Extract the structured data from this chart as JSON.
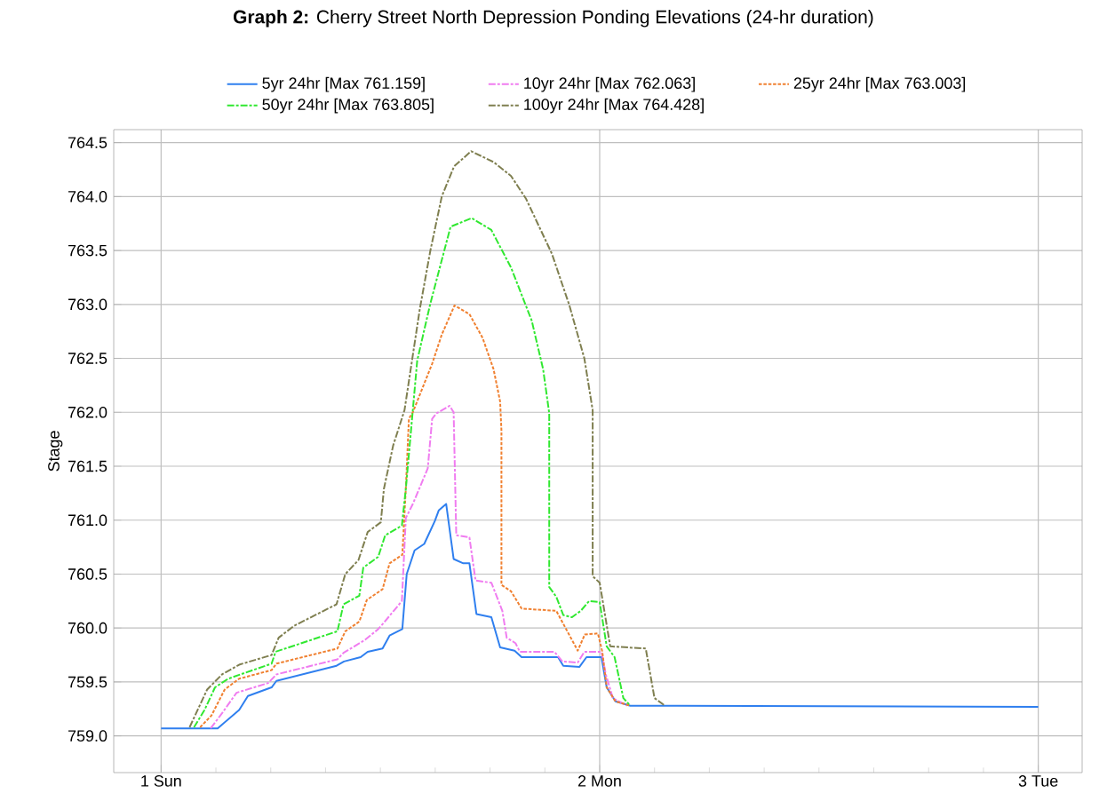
{
  "chart_data": {
    "type": "line",
    "title": "**Graph 2:** Cherry Street North Depression Ponding Elevations (24-hr duration)",
    "ylabel": "Stage",
    "xlim": [
      0.892,
      3.1
    ],
    "ylim": [
      758.66,
      764.62
    ],
    "xticks": [
      {
        "value": 1,
        "label": "1 Sun"
      },
      {
        "value": 1.125,
        "label": null
      },
      {
        "value": 1.25,
        "label": null
      },
      {
        "value": 1.375,
        "label": null
      },
      {
        "value": 1.5,
        "label": null
      },
      {
        "value": 1.625,
        "label": null
      },
      {
        "value": 1.75,
        "label": null
      },
      {
        "value": 1.875,
        "label": null
      },
      {
        "value": 2,
        "label": "2 Mon"
      },
      {
        "value": 2.125,
        "label": null
      },
      {
        "value": 2.25,
        "label": null
      },
      {
        "value": 2.375,
        "label": null
      },
      {
        "value": 2.5,
        "label": null
      },
      {
        "value": 2.625,
        "label": null
      },
      {
        "value": 2.75,
        "label": null
      },
      {
        "value": 2.875,
        "label": null
      },
      {
        "value": 3,
        "label": "3 Tue"
      }
    ],
    "yticks": [
      {
        "value": 759,
        "label": "759.0"
      },
      {
        "value": 759.5,
        "label": "759.5"
      },
      {
        "value": 760,
        "label": "760.0"
      },
      {
        "value": 760.5,
        "label": "760.5"
      },
      {
        "value": 761,
        "label": "761.0"
      },
      {
        "value": 761.5,
        "label": "761.5"
      },
      {
        "value": 762,
        "label": "762.0"
      },
      {
        "value": 762.5,
        "label": "762.5"
      },
      {
        "value": 763,
        "label": "763.0"
      },
      {
        "value": 763.5,
        "label": "763.5"
      },
      {
        "value": 764,
        "label": "764.0"
      },
      {
        "value": 764.5,
        "label": "764.5"
      }
    ],
    "grid": true,
    "legend": "top",
    "marker": "none",
    "series": [
      {
        "name": "5yr 24hr [Max 761.159]",
        "color": "#2f7fef",
        "line_style": "solid",
        "x": [
          1,
          1.129,
          1.178,
          1.198,
          1.252,
          1.263,
          1.4,
          1.417,
          1.455,
          1.471,
          1.505,
          1.521,
          1.55,
          1.56,
          1.578,
          1.6,
          1.624,
          1.633,
          1.65,
          1.667,
          1.689,
          1.703,
          1.719,
          1.753,
          1.773,
          1.806,
          1.822,
          1.905,
          1.917,
          1.954,
          1.97,
          2.004,
          2.016,
          2.036,
          2.07,
          3
        ],
        "values": [
          759.07,
          759.07,
          759.24,
          759.37,
          759.45,
          759.51,
          759.65,
          759.69,
          759.73,
          759.78,
          759.81,
          759.93,
          759.99,
          760.5,
          760.72,
          760.78,
          760.99,
          761.09,
          761.15,
          760.64,
          760.6,
          760.6,
          760.13,
          760.1,
          759.82,
          759.79,
          759.73,
          759.73,
          759.65,
          759.64,
          759.73,
          759.73,
          759.45,
          759.32,
          759.28,
          759.27
        ]
      },
      {
        "name": "10yr 24hr [Max 762.063]",
        "color": "#f07cf0",
        "line_style": "dashed",
        "x": [
          1.113,
          1.139,
          1.172,
          1.244,
          1.263,
          1.402,
          1.416,
          1.465,
          1.495,
          1.508,
          1.549,
          1.558,
          1.574,
          1.608,
          1.618,
          1.628,
          1.658,
          1.667,
          1.673,
          1.703,
          1.717,
          1.753,
          1.778,
          1.788,
          1.808,
          1.818,
          1.897,
          1.915,
          1.95,
          1.965,
          2.004,
          2.014,
          2.03,
          2.063
        ],
        "values": [
          759.07,
          759.21,
          759.4,
          759.49,
          759.57,
          759.71,
          759.77,
          759.89,
          759.99,
          760.05,
          760.25,
          761.02,
          761.15,
          761.48,
          761.94,
          761.99,
          762.06,
          762.0,
          760.86,
          760.84,
          760.44,
          760.42,
          760.16,
          759.91,
          759.86,
          759.78,
          759.78,
          759.69,
          759.68,
          759.78,
          759.78,
          759.57,
          759.35,
          759.28
        ]
      },
      {
        "name": "25yr 24hr [Max 763.003]",
        "color": "#f08030",
        "line_style": "dotted",
        "x": [
          1.089,
          1.115,
          1.145,
          1.178,
          1.252,
          1.263,
          1.402,
          1.42,
          1.452,
          1.469,
          1.505,
          1.521,
          1.55,
          1.558,
          1.565,
          1.574,
          1.618,
          1.64,
          1.669,
          1.703,
          1.733,
          1.758,
          1.773,
          1.776,
          1.776,
          1.798,
          1.822,
          1.901,
          1.95,
          1.966,
          1.996,
          2.006,
          2.016,
          2.036,
          2.07
        ],
        "values": [
          759.08,
          759.19,
          759.43,
          759.53,
          759.61,
          759.67,
          759.81,
          759.97,
          760.06,
          760.26,
          760.36,
          760.6,
          760.68,
          761.29,
          761.94,
          762.0,
          762.45,
          762.72,
          762.99,
          762.91,
          762.69,
          762.4,
          762.1,
          761.83,
          760.4,
          760.34,
          760.18,
          760.16,
          759.79,
          759.94,
          759.95,
          759.78,
          759.45,
          759.32,
          759.28
        ]
      },
      {
        "name": "50yr 24hr [Max 763.805]",
        "color": "#30e830",
        "line_style": "dashed",
        "x": [
          1.075,
          1.099,
          1.123,
          1.153,
          1.252,
          1.261,
          1.402,
          1.416,
          1.452,
          1.461,
          1.495,
          1.511,
          1.549,
          1.558,
          1.584,
          1.614,
          1.66,
          1.708,
          1.753,
          1.798,
          1.845,
          1.871,
          1.885,
          1.885,
          1.901,
          1.917,
          1.937,
          1.957,
          1.976,
          2,
          2.016,
          2.034,
          2.054,
          2.07
        ],
        "values": [
          759.08,
          759.24,
          759.45,
          759.53,
          759.67,
          759.78,
          759.97,
          760.22,
          760.3,
          760.56,
          760.66,
          760.86,
          760.95,
          761.29,
          762.48,
          763.01,
          763.72,
          763.8,
          763.69,
          763.34,
          762.85,
          762.4,
          761.99,
          760.38,
          760.29,
          760.12,
          760.1,
          760.16,
          760.25,
          760.24,
          759.83,
          759.73,
          759.35,
          759.28
        ]
      },
      {
        "name": "100yr 24hr [Max 764.428]",
        "color": "#7f7f50",
        "line_style": "dashed",
        "x": [
          1.065,
          1.105,
          1.139,
          1.178,
          1.252,
          1.268,
          1.303,
          1.4,
          1.42,
          1.45,
          1.471,
          1.501,
          1.508,
          1.529,
          1.555,
          1.59,
          1.614,
          1.64,
          1.668,
          1.707,
          1.758,
          1.798,
          1.832,
          1.891,
          1.931,
          1.965,
          1.984,
          1.984,
          2,
          2.024,
          2.105,
          2.125,
          2.149
        ],
        "values": [
          759.08,
          759.43,
          759.57,
          759.66,
          759.75,
          759.91,
          760.02,
          760.22,
          760.5,
          760.63,
          760.89,
          760.98,
          761.29,
          761.69,
          762.02,
          762.96,
          763.5,
          764.0,
          764.28,
          764.42,
          764.32,
          764.19,
          763.98,
          763.47,
          762.99,
          762.5,
          762.02,
          760.48,
          760.42,
          759.83,
          759.81,
          759.35,
          759.28
        ]
      }
    ]
  }
}
